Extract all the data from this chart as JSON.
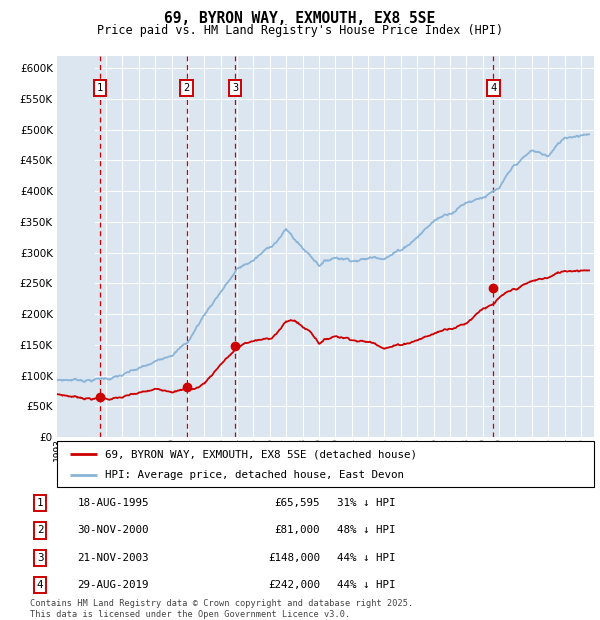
{
  "title": "69, BYRON WAY, EXMOUTH, EX8 5SE",
  "subtitle": "Price paid vs. HM Land Registry's House Price Index (HPI)",
  "ylim": [
    0,
    620000
  ],
  "yticks": [
    0,
    50000,
    100000,
    150000,
    200000,
    250000,
    300000,
    350000,
    400000,
    450000,
    500000,
    550000,
    600000
  ],
  "background_color": "#ffffff",
  "plot_bg_color": "#dce6f1",
  "hpi_color": "#8ab4d8",
  "price_color": "#cc0000",
  "grid_color": "#ffffff",
  "vline_color": "#cc0000",
  "transactions": [
    {
      "num": 1,
      "date": "18-AUG-1995",
      "price": 65595,
      "pct": "31%",
      "x_year": 1995.62
    },
    {
      "num": 2,
      "date": "30-NOV-2000",
      "price": 81000,
      "pct": "48%",
      "x_year": 2000.91
    },
    {
      "num": 3,
      "date": "21-NOV-2003",
      "price": 148000,
      "pct": "44%",
      "x_year": 2003.89
    },
    {
      "num": 4,
      "date": "29-AUG-2019",
      "price": 242000,
      "pct": "44%",
      "x_year": 2019.66
    }
  ],
  "legend_label_price": "69, BYRON WAY, EXMOUTH, EX8 5SE (detached house)",
  "legend_label_hpi": "HPI: Average price, detached house, East Devon",
  "footnote": "Contains HM Land Registry data © Crown copyright and database right 2025.\nThis data is licensed under the Open Government Licence v3.0.",
  "xlim_start": 1993.0,
  "xlim_end": 2025.8,
  "hpi_control_years": [
    1993,
    1994,
    1995,
    1996,
    1997,
    1998,
    1999,
    2000,
    2001,
    2002,
    2003,
    2004,
    2005,
    2006,
    2007,
    2008,
    2009,
    2010,
    2011,
    2012,
    2013,
    2014,
    2015,
    2016,
    2017,
    2018,
    2019,
    2020,
    2021,
    2022,
    2023,
    2024,
    2025.5
  ],
  "hpi_control_vals": [
    93000,
    95000,
    97000,
    100000,
    105000,
    112000,
    120000,
    140000,
    160000,
    205000,
    245000,
    280000,
    295000,
    315000,
    345000,
    315000,
    292000,
    305000,
    305000,
    308000,
    315000,
    328000,
    352000,
    378000,
    395000,
    415000,
    428000,
    438000,
    472000,
    492000,
    483000,
    512000,
    527000
  ],
  "price_control_years": [
    1993,
    1994,
    1995.5,
    1996,
    1997,
    1998,
    1999,
    2000,
    2000.92,
    2001.5,
    2002,
    2002.5,
    2003,
    2003.89,
    2004.5,
    2005,
    2006,
    2007,
    2007.5,
    2008,
    2008.5,
    2009,
    2010,
    2011,
    2012,
    2013,
    2014,
    2015,
    2016,
    2017,
    2018,
    2019,
    2019.67,
    2020,
    2021,
    2021.5,
    2022,
    2023,
    2024,
    2025.5
  ],
  "price_control_vals": [
    70000,
    67000,
    65595,
    66000,
    68000,
    72000,
    76000,
    79000,
    81000,
    83000,
    92000,
    108000,
    125000,
    148000,
    158000,
    162000,
    164000,
    193000,
    196000,
    185000,
    178000,
    162000,
    174000,
    172000,
    168000,
    163000,
    168000,
    178000,
    188000,
    200000,
    210000,
    238000,
    242000,
    252000,
    262000,
    268000,
    273000,
    279000,
    289000,
    297000
  ]
}
